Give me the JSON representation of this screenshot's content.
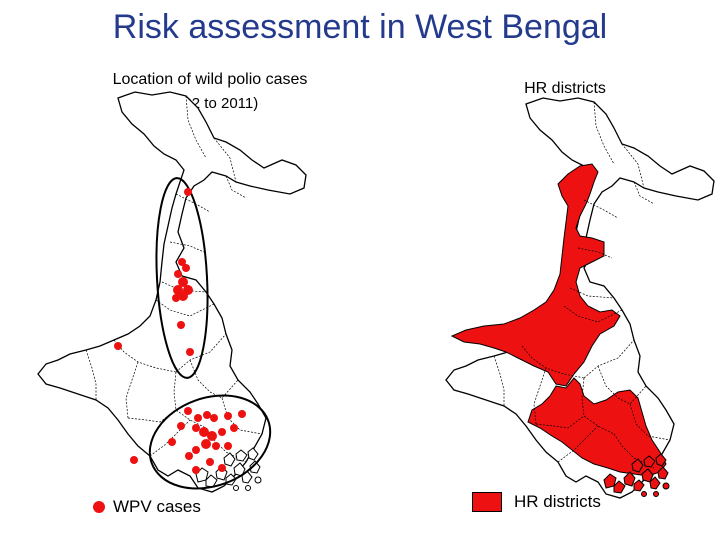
{
  "title": "Risk assessment in West Bengal",
  "left_map": {
    "title": "Location of wild polio cases",
    "subtitle": "(2002 to 2011)",
    "legend_label": "WPV cases",
    "legend_color": "#ee1111"
  },
  "right_map": {
    "title": "HR districts",
    "legend_label": "HR districts",
    "legend_color": "#ee1111"
  },
  "colors": {
    "title": "#243a8c",
    "highlight": "#ee1111",
    "outline": "#000000"
  }
}
